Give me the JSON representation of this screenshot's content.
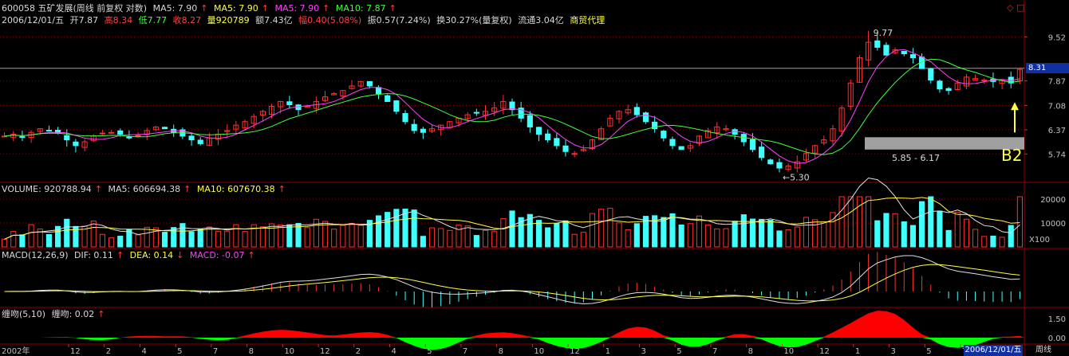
{
  "header": {
    "code_name": "600058 五矿发展(周线 前复权 对数)",
    "ma5a": "MA5: 7.90",
    "ma5b": "MA5: 7.90",
    "ma5c": "MA5: 7.90",
    "ma10": "MA10: 7.87",
    "date": "2006/12/01/五",
    "open_lbl": "开7.87",
    "high_lbl": "高8.34",
    "low_lbl": "低7.77",
    "close_lbl": "收8.27",
    "vol_lbl": "量920789",
    "amt_lbl": "额7.43亿",
    "chg_lbl": "幅0.40(5.08%)",
    "amp_lbl": "振0.57(7.24%)",
    "turn_lbl": "换30.27%(量复权)",
    "float_lbl": "流通3.04亿",
    "sector": "商贸代理"
  },
  "price_axis": [
    "9.52",
    "7.87",
    "7.08",
    "6.37",
    "5.74"
  ],
  "current_price": "8.31",
  "annotations": {
    "high_mark": "9.77",
    "low_mark": "5.30",
    "range_label": "5.85 - 6.17",
    "b2": "B2"
  },
  "volume": {
    "label": "VOLUME: 920788.94",
    "ma5": "MA5: 606694.38",
    "ma10": "MA10: 607670.38",
    "axis": [
      "20000",
      "10000"
    ],
    "unit": "X100"
  },
  "macd": {
    "label": "MACD(12,26,9)",
    "dif": "DIF: 0.11",
    "dea": "DEA: 0.14",
    "macd": "MACD: -0.07"
  },
  "wrap": {
    "label": "缠吻(5,10)",
    "value": "缠吻: 0.02",
    "axis": [
      "1.50",
      "0.00"
    ]
  },
  "time_axis": {
    "year": "2002年",
    "months": [
      "12",
      "2",
      "4",
      "5",
      "7",
      "8",
      "10",
      "12",
      "2",
      "4",
      "5",
      "7",
      "8",
      "10",
      "12",
      "1",
      "3",
      "5",
      "7",
      "8",
      "10",
      "12",
      "1",
      "3",
      "5",
      "7"
    ],
    "current_date": "2006/12/01/五",
    "period": "周线"
  },
  "colors": {
    "up": "#ff3030",
    "down": "#40ffff",
    "ma5": "#ff40ff",
    "ma10": "#40ff40",
    "ma_white": "#e0e0e0",
    "ma_yellow": "#ffff40",
    "grid": "#8b0000"
  },
  "chart_data": [
    {
      "type": "candlestick",
      "title": "600058 五矿发展(周线 前复权 对数)",
      "ylim": [
        5.2,
        10.0
      ],
      "y_ticks": [
        5.74,
        6.37,
        7.08,
        7.87,
        9.52
      ],
      "key_points": [
        {
          "label": "high",
          "value": 9.77
        },
        {
          "label": "low",
          "value": 5.3
        },
        {
          "label": "range_low",
          "value": 5.85
        },
        {
          "label": "range_high",
          "value": 6.17
        }
      ],
      "last": {
        "open": 7.87,
        "high": 8.34,
        "low": 7.77,
        "close": 8.27
      },
      "close_path": [
        6.2,
        6.25,
        6.18,
        6.3,
        6.4,
        6.35,
        6.28,
        6.1,
        5.95,
        6.05,
        6.2,
        6.28,
        6.3,
        6.25,
        6.15,
        6.22,
        6.35,
        6.45,
        6.4,
        6.3,
        6.2,
        6.1,
        6.0,
        6.15,
        6.25,
        6.35,
        6.5,
        6.6,
        6.75,
        6.9,
        7.05,
        7.2,
        7.1,
        6.95,
        7.05,
        7.2,
        7.35,
        7.45,
        7.55,
        7.7,
        7.85,
        7.7,
        7.45,
        7.2,
        6.9,
        6.6,
        6.35,
        6.3,
        6.4,
        6.5,
        6.6,
        6.7,
        6.8,
        6.85,
        6.9,
        7.0,
        7.2,
        6.95,
        6.7,
        6.45,
        6.25,
        6.1,
        5.95,
        5.8,
        5.75,
        5.85,
        6.1,
        6.4,
        6.7,
        6.9,
        6.95,
        6.8,
        6.6,
        6.4,
        6.15,
        5.95,
        5.85,
        5.95,
        6.2,
        6.35,
        6.45,
        6.4,
        6.25,
        6.05,
        5.85,
        5.65,
        5.5,
        5.4,
        5.45,
        5.55,
        5.75,
        5.95,
        6.1,
        6.4,
        7.0,
        7.8,
        8.7,
        9.3,
        9.1,
        8.8,
        9.0,
        8.85,
        8.7,
        8.3,
        7.9,
        7.6,
        7.55,
        7.8,
        8.0,
        7.95,
        7.9,
        7.85,
        7.9,
        7.8,
        8.27
      ]
    }
  ]
}
